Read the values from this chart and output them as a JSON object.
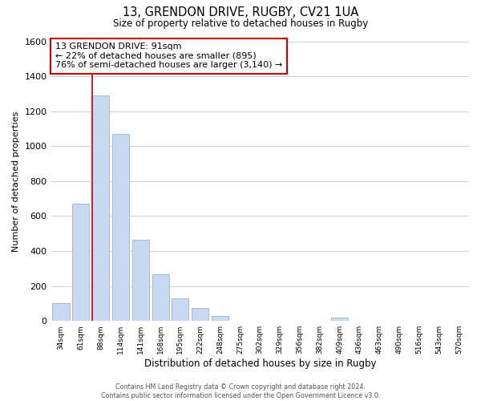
{
  "title": "13, GRENDON DRIVE, RUGBY, CV21 1UA",
  "subtitle": "Size of property relative to detached houses in Rugby",
  "xlabel": "Distribution of detached houses by size in Rugby",
  "ylabel": "Number of detached properties",
  "bar_labels": [
    "34sqm",
    "61sqm",
    "88sqm",
    "114sqm",
    "141sqm",
    "168sqm",
    "195sqm",
    "222sqm",
    "248sqm",
    "275sqm",
    "302sqm",
    "329sqm",
    "356sqm",
    "382sqm",
    "409sqm",
    "436sqm",
    "463sqm",
    "490sqm",
    "516sqm",
    "543sqm",
    "570sqm"
  ],
  "bar_values": [
    100,
    670,
    1290,
    1070,
    465,
    265,
    130,
    75,
    30,
    0,
    0,
    0,
    0,
    0,
    20,
    0,
    0,
    0,
    0,
    0,
    0
  ],
  "bar_color": "#c6d9f0",
  "bar_edge_color": "#9ab4d0",
  "highlight_index": 2,
  "highlight_line_color": "#cc0000",
  "ylim": [
    0,
    1600
  ],
  "yticks": [
    0,
    200,
    400,
    600,
    800,
    1000,
    1200,
    1400,
    1600
  ],
  "annotation_title": "13 GRENDON DRIVE: 91sqm",
  "annotation_line1": "← 22% of detached houses are smaller (895)",
  "annotation_line2": "76% of semi-detached houses are larger (3,140) →",
  "annotation_box_color": "#ffffff",
  "annotation_box_edge": "#cc0000",
  "footer_line1": "Contains HM Land Registry data © Crown copyright and database right 2024.",
  "footer_line2": "Contains public sector information licensed under the Open Government Licence v3.0.",
  "grid_color": "#ccd4e0",
  "background_color": "#ffffff"
}
